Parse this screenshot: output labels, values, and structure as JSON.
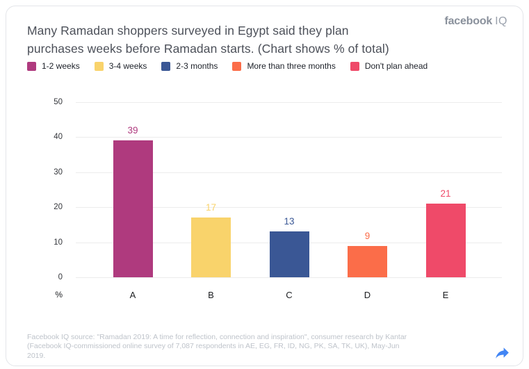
{
  "header": {
    "title_lines": [
      "Many Ramadan shoppers surveyed in Egypt said they plan",
      "purchases weeks before Ramadan starts. (Chart shows % of total)"
    ],
    "logo": {
      "primary": "facebook",
      "secondary": "IQ"
    }
  },
  "chart_data": {
    "type": "bar",
    "title": "Many Ramadan shoppers surveyed in Egypt said they plan purchases weeks before Ramadan starts. (Chart shows % of total)",
    "categories": [
      "A",
      "B",
      "C",
      "D",
      "E"
    ],
    "values": [
      39,
      17,
      13,
      9,
      21
    ],
    "legend": [
      {
        "label": "1-2 weeks",
        "color": "#af3a7e"
      },
      {
        "label": "3-4 weeks",
        "color": "#f9d36b"
      },
      {
        "label": "2-3 months",
        "color": "#3a5795"
      },
      {
        "label": "More than three months",
        "color": "#fb6d49"
      },
      {
        "label": "Don't plan ahead",
        "color": "#ef4a69"
      }
    ],
    "bar_colors": [
      "#af3a7e",
      "#f9d36b",
      "#3a5795",
      "#fb6d49",
      "#ef4a69"
    ],
    "xlabel": "",
    "ylabel": "%",
    "ylim": [
      0,
      50
    ],
    "yticks": [
      0,
      10,
      20,
      30,
      40,
      50
    ],
    "grid": true,
    "legend_position": "top",
    "value_labels": true
  },
  "footer": {
    "lines": [
      "Facebook IQ source: \"Ramadan 2019: A time for reflection, connection and inspiration\", consumer research by Kantar",
      "(Facebook IQ-commissioned online survey of 7,087 respondents in AE, EG, FR, ID, NG, PK, SA, TK, UK), May-Jun",
      "2019."
    ]
  },
  "colors": {
    "accent_blue": "#4285f4",
    "title_text": "#4c5059",
    "grid_line": "#ececec"
  },
  "icons": {
    "share": "share-arrow"
  }
}
